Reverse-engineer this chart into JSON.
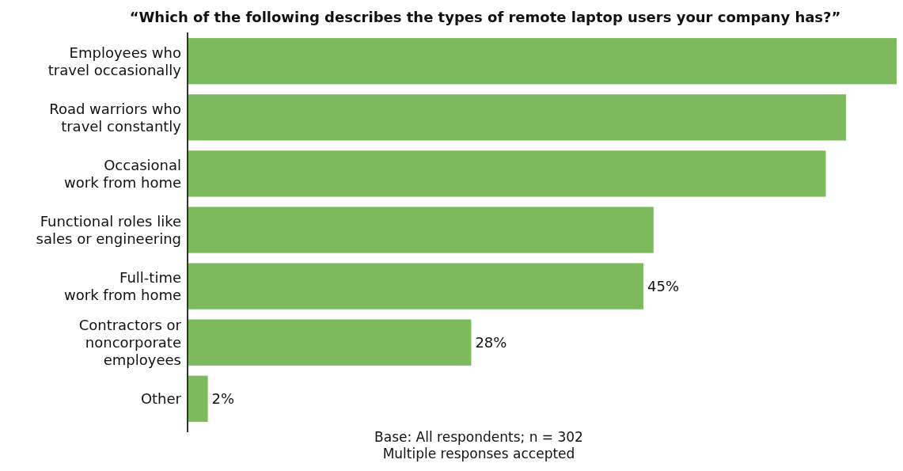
{
  "chart_data": {
    "type": "bar",
    "orientation": "horizontal",
    "title": "“Which of the following describes the types of remote laptop users your company has?”",
    "categories": [
      "Employees who\ntravel occasionally",
      "Road warriors who\ntravel constantly",
      "Occasional\nwork from home",
      "Functional roles like\nsales or engineering",
      "Full-time\nwork from home",
      "Contractors or\nnoncorporate\nemployees",
      "Other"
    ],
    "values": [
      70,
      65,
      63,
      46,
      45,
      28,
      2
    ],
    "value_labels": [
      null,
      null,
      null,
      null,
      "45%",
      "28%",
      "2%"
    ],
    "color": "#7cba5d",
    "annotations": [
      "Base: All respondents; n = 302",
      "Multiple responses accepted"
    ]
  }
}
